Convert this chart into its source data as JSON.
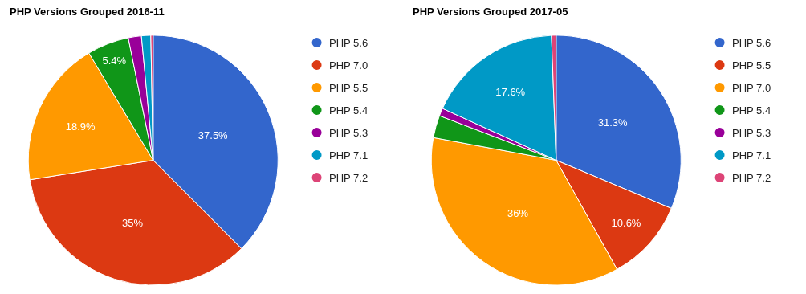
{
  "chart_data": [
    {
      "type": "pie",
      "title": "PHP Versions Grouped 2016-11",
      "categories": [
        "PHP 5.6",
        "PHP 7.0",
        "PHP 5.5",
        "PHP 5.4",
        "PHP 5.3",
        "PHP 7.1",
        "PHP 7.2"
      ],
      "values": [
        37.5,
        35,
        18.9,
        5.4,
        1.7,
        1.2,
        0.3
      ],
      "value_labels": [
        "37.5%",
        "35%",
        "18.9%",
        "5.4%",
        null,
        null,
        null
      ],
      "colors": [
        "#3366cc",
        "#dc3912",
        "#ff9900",
        "#109618",
        "#990099",
        "#0099c6",
        "#dd4477"
      ],
      "legend": "right"
    },
    {
      "type": "pie",
      "title": "PHP Versions Grouped 2017-05",
      "categories": [
        "PHP 5.6",
        "PHP 5.5",
        "PHP 7.0",
        "PHP 5.4",
        "PHP 5.3",
        "PHP 7.1",
        "PHP 7.2"
      ],
      "values": [
        31.3,
        10.6,
        36,
        2.9,
        1.0,
        17.6,
        0.6
      ],
      "value_labels": [
        "31.3%",
        "10.6%",
        "36%",
        null,
        null,
        "17.6%",
        null
      ],
      "colors": [
        "#3366cc",
        "#dc3912",
        "#ff9900",
        "#109618",
        "#990099",
        "#0099c6",
        "#dd4477"
      ],
      "legend": "right"
    }
  ]
}
